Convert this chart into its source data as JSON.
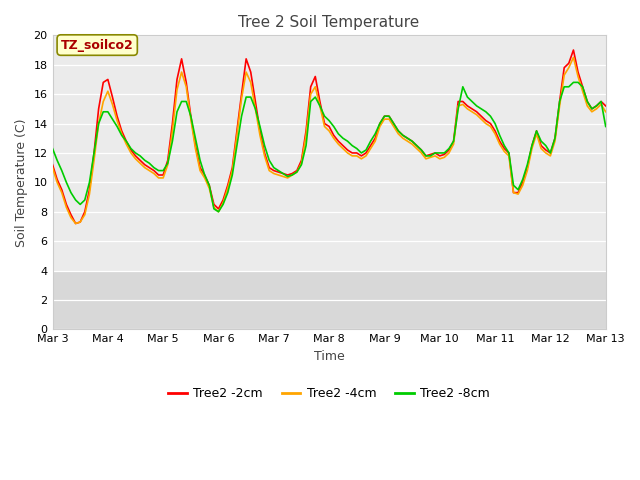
{
  "title": "Tree 2 Soil Temperature",
  "xlabel": "Time",
  "ylabel": "Soil Temperature (C)",
  "ylim": [
    0,
    20
  ],
  "yticks": [
    0,
    2,
    4,
    6,
    8,
    10,
    12,
    14,
    16,
    18,
    20
  ],
  "xtick_labels": [
    "Mar 3",
    "Mar 4",
    "Mar 5",
    "Mar 6",
    "Mar 7",
    "Mar 8",
    "Mar 9",
    "Mar 10",
    "Mar 11",
    "Mar 12",
    "Mar 13"
  ],
  "legend_labels": [
    "Tree2 -2cm",
    "Tree2 -4cm",
    "Tree2 -8cm"
  ],
  "legend_colors": [
    "#ff0000",
    "#ffa500",
    "#00cc00"
  ],
  "annotation_text": "TZ_soilco2",
  "annotation_color": "#aa0000",
  "annotation_bg": "#ffffcc",
  "fig_bg_color": "#ffffff",
  "plot_bg_color": "#ebebeb",
  "plot_bg_lower": "#d8d8d8",
  "line_width": 1.2,
  "title_fontsize": 11,
  "axis_fontsize": 9,
  "tick_fontsize": 8,
  "colors": {
    "2cm": "#ff0000",
    "4cm": "#ffa500",
    "8cm": "#00cc00"
  },
  "x_data": [
    0.0,
    0.083,
    0.167,
    0.25,
    0.333,
    0.417,
    0.5,
    0.583,
    0.667,
    0.75,
    0.833,
    0.917,
    1.0,
    1.083,
    1.167,
    1.25,
    1.333,
    1.417,
    1.5,
    1.583,
    1.667,
    1.75,
    1.833,
    1.917,
    2.0,
    2.083,
    2.167,
    2.25,
    2.333,
    2.417,
    2.5,
    2.583,
    2.667,
    2.75,
    2.833,
    2.917,
    3.0,
    3.083,
    3.167,
    3.25,
    3.333,
    3.417,
    3.5,
    3.583,
    3.667,
    3.75,
    3.833,
    3.917,
    4.0,
    4.083,
    4.167,
    4.25,
    4.333,
    4.417,
    4.5,
    4.583,
    4.667,
    4.75,
    4.833,
    4.917,
    5.0,
    5.083,
    5.167,
    5.25,
    5.333,
    5.417,
    5.5,
    5.583,
    5.667,
    5.75,
    5.833,
    5.917,
    6.0,
    6.083,
    6.167,
    6.25,
    6.333,
    6.417,
    6.5,
    6.583,
    6.667,
    6.75,
    6.833,
    6.917,
    7.0,
    7.083,
    7.167,
    7.25,
    7.333,
    7.417,
    7.5,
    7.583,
    7.667,
    7.75,
    7.833,
    7.917,
    8.0,
    8.083,
    8.167,
    8.25,
    8.333,
    8.417,
    8.5,
    8.583,
    8.667,
    8.75,
    8.833,
    8.917,
    9.0,
    9.083,
    9.167,
    9.25,
    9.333,
    9.417,
    9.5,
    9.583,
    9.667,
    9.75,
    9.833,
    9.917,
    10.0
  ],
  "y_2cm": [
    11.2,
    10.2,
    9.5,
    8.5,
    7.8,
    7.2,
    7.3,
    8.0,
    9.5,
    12.0,
    15.0,
    16.8,
    17.0,
    15.8,
    14.5,
    13.5,
    12.8,
    12.2,
    11.8,
    11.5,
    11.2,
    11.0,
    10.8,
    10.5,
    10.5,
    11.5,
    14.0,
    17.0,
    18.4,
    16.8,
    14.5,
    12.5,
    11.0,
    10.5,
    9.8,
    8.5,
    8.2,
    8.8,
    9.8,
    11.0,
    13.5,
    16.0,
    18.4,
    17.5,
    15.5,
    13.5,
    12.0,
    11.0,
    10.8,
    10.7,
    10.6,
    10.5,
    10.6,
    10.8,
    11.5,
    13.5,
    16.5,
    17.2,
    15.5,
    14.0,
    13.8,
    13.2,
    12.8,
    12.5,
    12.2,
    12.0,
    12.0,
    11.8,
    12.0,
    12.5,
    13.0,
    14.0,
    14.5,
    14.5,
    14.0,
    13.5,
    13.2,
    13.0,
    12.8,
    12.5,
    12.2,
    11.8,
    11.9,
    12.0,
    11.8,
    11.9,
    12.2,
    12.8,
    15.5,
    15.5,
    15.2,
    15.0,
    14.8,
    14.5,
    14.2,
    14.0,
    13.5,
    12.8,
    12.3,
    12.0,
    9.3,
    9.3,
    10.0,
    11.0,
    12.5,
    13.5,
    12.5,
    12.2,
    12.0,
    13.0,
    15.5,
    17.8,
    18.1,
    19.0,
    17.5,
    16.5,
    15.5,
    15.0,
    15.2,
    15.5,
    15.2
  ],
  "y_4cm": [
    11.0,
    10.0,
    9.3,
    8.3,
    7.6,
    7.2,
    7.3,
    7.8,
    9.2,
    11.5,
    14.0,
    15.5,
    16.2,
    15.3,
    14.2,
    13.3,
    12.6,
    12.0,
    11.6,
    11.3,
    11.0,
    10.8,
    10.6,
    10.3,
    10.3,
    11.2,
    13.5,
    16.3,
    17.5,
    16.5,
    14.3,
    12.3,
    10.8,
    10.3,
    9.6,
    8.3,
    8.0,
    8.6,
    9.6,
    10.8,
    13.2,
    15.7,
    17.5,
    16.8,
    15.0,
    13.2,
    11.8,
    10.8,
    10.6,
    10.5,
    10.4,
    10.3,
    10.5,
    10.7,
    11.3,
    13.2,
    16.0,
    16.5,
    15.2,
    13.8,
    13.5,
    13.0,
    12.6,
    12.3,
    12.0,
    11.8,
    11.8,
    11.6,
    11.8,
    12.3,
    12.8,
    13.8,
    14.3,
    14.3,
    13.8,
    13.3,
    13.0,
    12.8,
    12.6,
    12.3,
    12.0,
    11.6,
    11.7,
    11.8,
    11.6,
    11.7,
    12.0,
    12.6,
    15.2,
    15.3,
    15.0,
    14.8,
    14.6,
    14.3,
    14.0,
    13.8,
    13.3,
    12.6,
    12.1,
    11.8,
    9.3,
    9.2,
    9.8,
    10.8,
    12.3,
    13.3,
    12.3,
    12.0,
    11.8,
    12.8,
    15.2,
    17.3,
    17.8,
    18.5,
    17.2,
    16.2,
    15.2,
    14.8,
    15.0,
    15.3,
    14.8
  ],
  "y_8cm": [
    12.3,
    11.5,
    10.8,
    10.0,
    9.3,
    8.8,
    8.5,
    8.8,
    10.0,
    12.0,
    14.0,
    14.8,
    14.8,
    14.3,
    13.8,
    13.2,
    12.8,
    12.3,
    12.0,
    11.8,
    11.5,
    11.3,
    11.0,
    10.8,
    10.8,
    11.3,
    12.8,
    14.8,
    15.5,
    15.5,
    14.5,
    13.0,
    11.5,
    10.5,
    9.8,
    8.2,
    8.0,
    8.5,
    9.3,
    10.5,
    12.5,
    14.5,
    15.8,
    15.8,
    15.0,
    13.8,
    12.5,
    11.5,
    11.0,
    10.8,
    10.6,
    10.4,
    10.5,
    10.7,
    11.2,
    12.5,
    15.5,
    15.8,
    15.2,
    14.5,
    14.2,
    13.8,
    13.3,
    13.0,
    12.8,
    12.5,
    12.3,
    12.0,
    12.2,
    12.8,
    13.3,
    14.0,
    14.5,
    14.5,
    14.0,
    13.5,
    13.2,
    13.0,
    12.8,
    12.5,
    12.2,
    11.8,
    11.8,
    12.0,
    12.0,
    12.0,
    12.3,
    12.8,
    15.0,
    16.5,
    15.8,
    15.5,
    15.2,
    15.0,
    14.8,
    14.5,
    14.0,
    13.2,
    12.5,
    12.0,
    9.8,
    9.5,
    10.2,
    11.2,
    12.5,
    13.5,
    12.8,
    12.5,
    12.0,
    13.0,
    15.5,
    16.5,
    16.5,
    16.8,
    16.8,
    16.5,
    15.5,
    15.0,
    15.2,
    15.5,
    13.8
  ]
}
